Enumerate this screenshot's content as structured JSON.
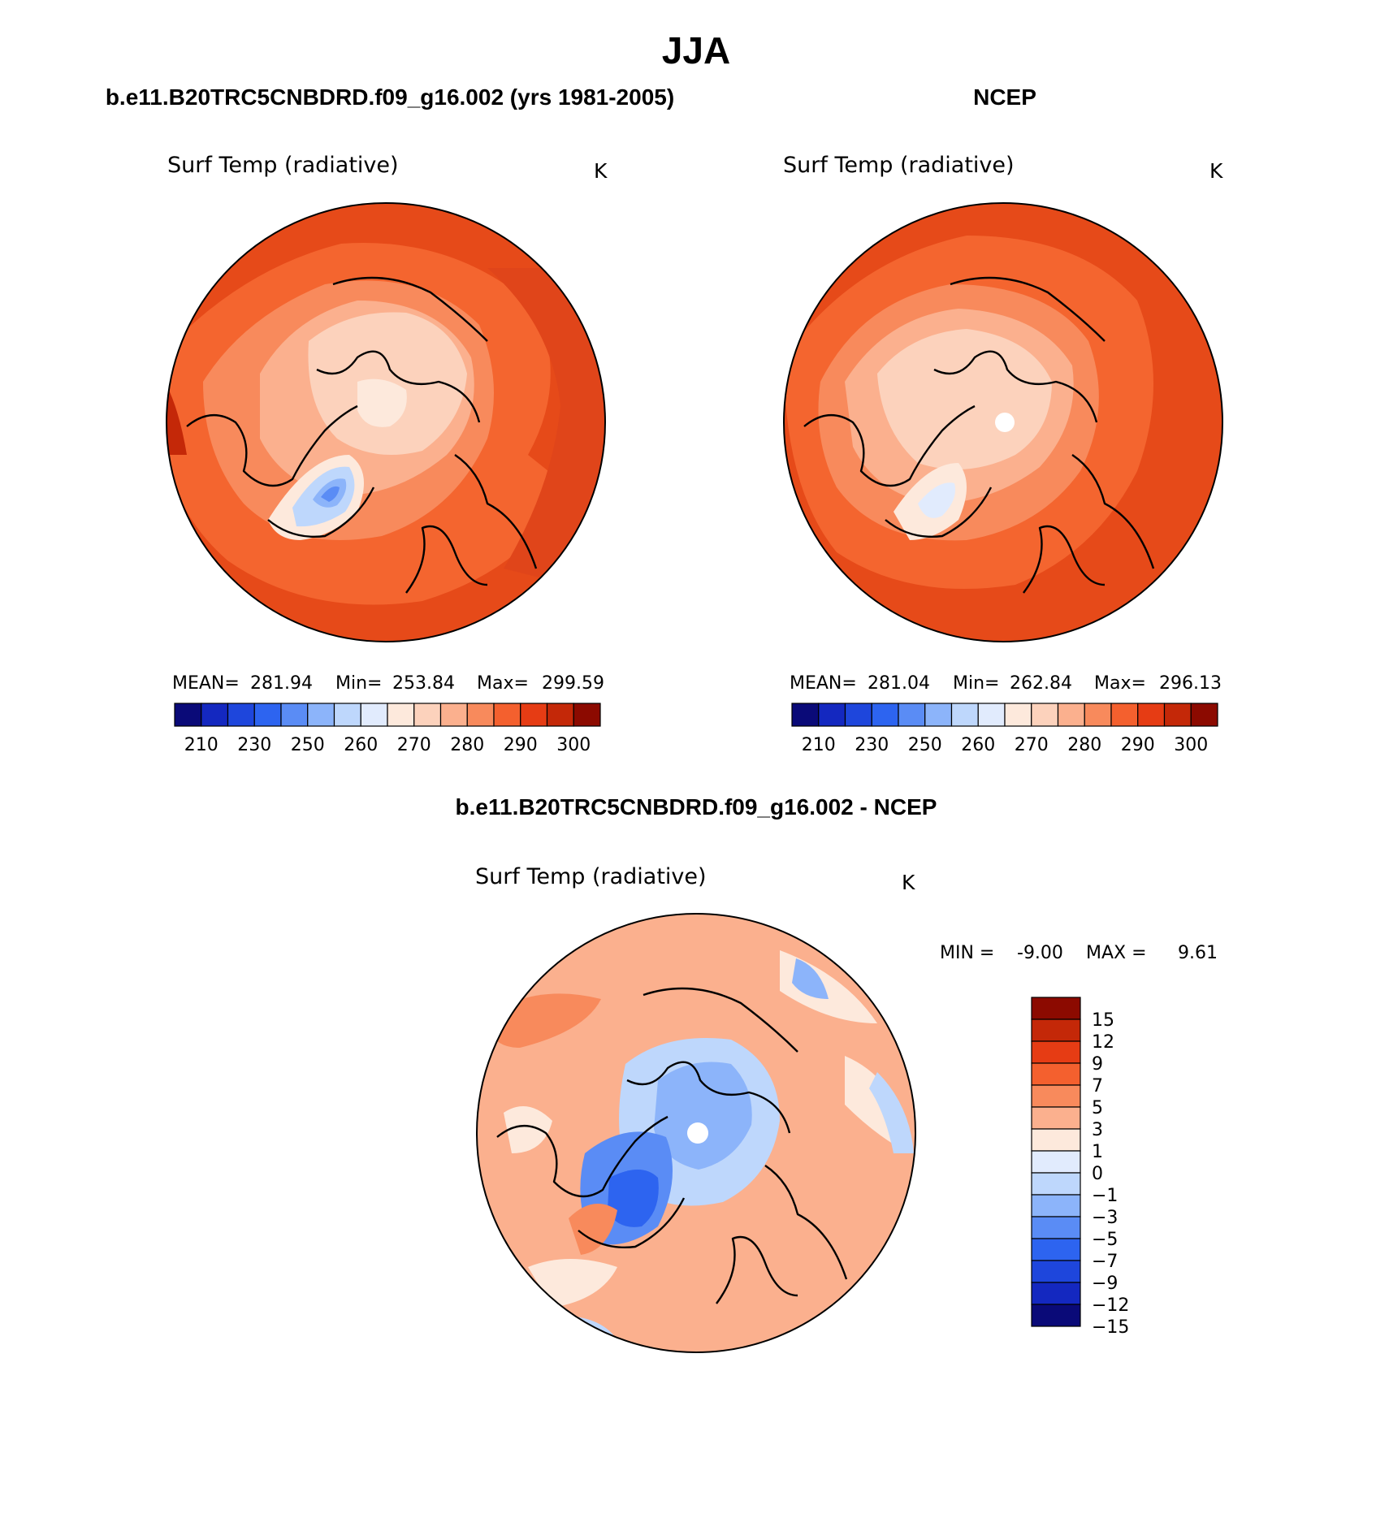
{
  "season_title": "JJA",
  "panels": [
    {
      "id": "model",
      "heading": "b.e11.B20TRC5CNBDRD.f09_g16.002 (yrs 1981-2005)",
      "variable": "Surf Temp (radiative)",
      "units": "K",
      "stats": {
        "mean": "281.94",
        "min": "253.84",
        "max": "299.59"
      },
      "stats_labels": {
        "mean": "MEAN=",
        "min": "Min=",
        "max": "Max="
      }
    },
    {
      "id": "ncep",
      "heading": "NCEP",
      "variable": "Surf Temp (radiative)",
      "units": "K",
      "stats": {
        "mean": "281.04",
        "min": "262.84",
        "max": "296.13"
      },
      "stats_labels": {
        "mean": "MEAN=",
        "min": "Min=",
        "max": "Max="
      }
    },
    {
      "id": "diff",
      "heading": "b.e11.B20TRC5CNBDRD.f09_g16.002 - NCEP",
      "variable": "Surf Temp (radiative)",
      "units": "K",
      "minmax_text": {
        "min_label": "MIN =",
        "min": "-9.00",
        "max_label": "MAX =",
        "max": "9.61"
      }
    }
  ],
  "colorbar_abs": {
    "colors": [
      "#0a0a78",
      "#1428c0",
      "#1e46dc",
      "#2d64f0",
      "#5a8cf5",
      "#8cb4fa",
      "#bed7fc",
      "#e1ebfd",
      "#fde9dc",
      "#fcd2bc",
      "#fbb08e",
      "#f88a5c",
      "#f4602e",
      "#e63c14",
      "#c42808",
      "#8c0a00"
    ],
    "tick_labels": [
      "210",
      "230",
      "250",
      "260",
      "270",
      "280",
      "290",
      "300"
    ]
  },
  "colorbar_diff": {
    "colors": [
      "#8c0a00",
      "#c42808",
      "#e63c14",
      "#f4602e",
      "#f88a5c",
      "#fbb08e",
      "#fde9dc",
      "#e1ebfd",
      "#bed7fc",
      "#8cb4fa",
      "#5a8cf5",
      "#2d64f0",
      "#1e46dc",
      "#1428c0",
      "#0a0a78"
    ],
    "tick_labels": [
      "15",
      "12",
      "9",
      "7",
      "5",
      "3",
      "1",
      "0",
      "−1",
      "−3",
      "−5",
      "−7",
      "−9",
      "−12",
      "−15"
    ]
  },
  "map_colors": {
    "outer_warm": "#e64a19",
    "mid_warm": "#f4652f",
    "light_warm": "#f88a5c",
    "pale_warm": "#fbb08e",
    "cream": "#fde9dc",
    "ice_pale": "#e1ebfd",
    "ice_blue": "#bed7fc",
    "ice_mid": "#8cb4fa",
    "ice_dark": "#2d64f0",
    "pole_hole": "#ffffff"
  }
}
